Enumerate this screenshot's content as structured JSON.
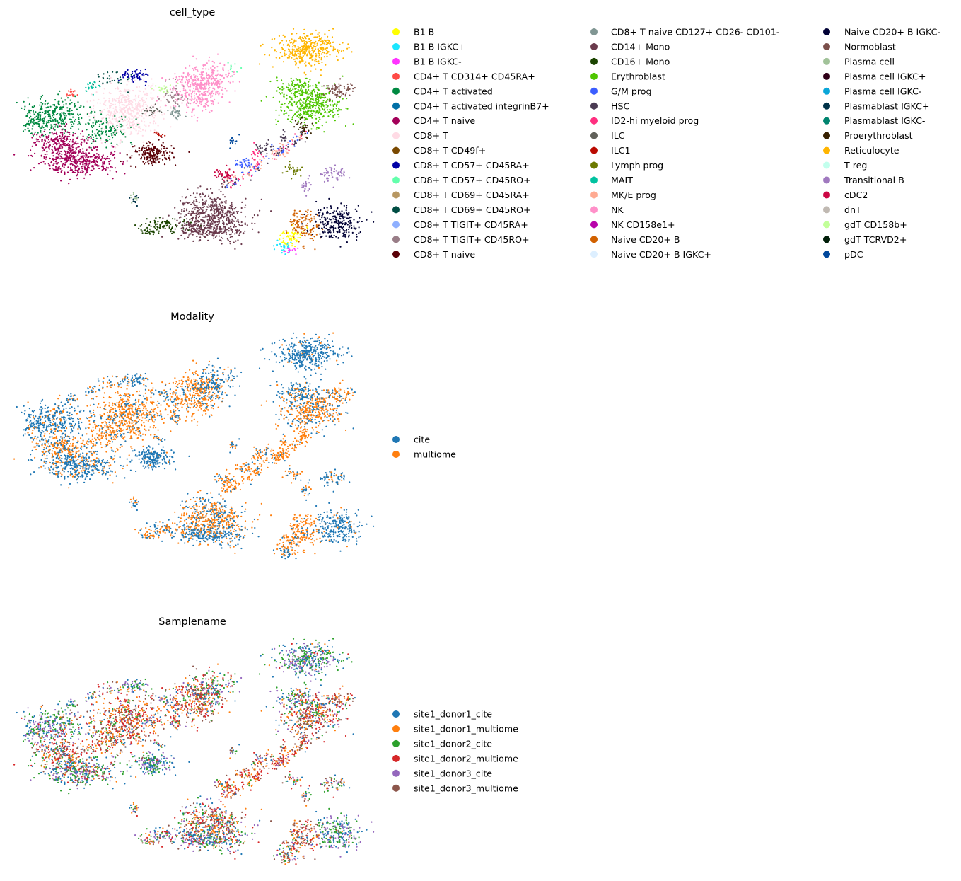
{
  "chart_data": {
    "type": "scatter",
    "xlabel": "",
    "ylabel": "",
    "grid": false,
    "panels": [
      {
        "title": "cell_type",
        "legend_placement": "right",
        "categories": [
          "B1 B",
          "B1 B IGKC+",
          "B1 B IGKC-",
          "CD4+ T CD314+ CD45RA+",
          "CD4+ T activated",
          "CD4+ T activated integrinB7+",
          "CD4+ T naive",
          "CD8+ T",
          "CD8+ T CD49f+",
          "CD8+ T CD57+ CD45RA+",
          "CD8+ T CD57+ CD45RO+",
          "CD8+ T CD69+ CD45RA+",
          "CD8+ T CD69+ CD45RO+",
          "CD8+ T TIGIT+ CD45RA+",
          "CD8+ T TIGIT+ CD45RO+",
          "CD8+ T naive",
          "CD8+ T naive CD127+ CD26- CD101-",
          "CD14+ Mono",
          "CD16+ Mono",
          "Erythroblast",
          "G/M prog",
          "HSC",
          "ID2-hi myeloid prog",
          "ILC",
          "ILC1",
          "Lymph prog",
          "MAIT",
          "MK/E prog",
          "NK",
          "NK CD158e1+",
          "Naive CD20+ B",
          "Naive CD20+ B IGKC+",
          "Naive CD20+ B IGKC-",
          "Normoblast",
          "Plasma cell",
          "Plasma cell IGKC+",
          "Plasma cell IGKC-",
          "Plasmablast IGKC+",
          "Plasmablast IGKC-",
          "Proerythroblast",
          "Reticulocyte",
          "T reg",
          "Transitional B",
          "cDC2",
          "dnT",
          "gdT CD158b+",
          "gdT TCRVD2+",
          "pDC"
        ],
        "colors": [
          "#FFFF00",
          "#1CE6FF",
          "#FF34FF",
          "#FF4A46",
          "#008941",
          "#006FA6",
          "#A30059",
          "#FFDBE5",
          "#7A4900",
          "#0000A6",
          "#63FFAC",
          "#B79762",
          "#004D43",
          "#8FB0FF",
          "#997D87",
          "#5A0007",
          "#809693",
          "#6A3A4C",
          "#1B4400",
          "#4FC601",
          "#3B5DFF",
          "#4A3B53",
          "#FF2F80",
          "#61615A",
          "#BA0900",
          "#6B7900",
          "#00C2A0",
          "#FFAA92",
          "#FF90C9",
          "#B903AA",
          "#D16100",
          "#DDEFFF",
          "#000035",
          "#7B4F4B",
          "#A1C299",
          "#300018",
          "#0AA6D8",
          "#013349",
          "#00846F",
          "#372101",
          "#FFB500",
          "#C2FFED",
          "#A079BF",
          "#CC0744",
          "#C0B9B2",
          "#C2FF99",
          "#001E09",
          "#00489C"
        ]
      },
      {
        "title": "Modality",
        "legend_placement": "right",
        "categories": [
          "cite",
          "multiome"
        ],
        "colors": [
          "#1F77B4",
          "#FF7F0E"
        ]
      },
      {
        "title": "Samplename",
        "legend_placement": "right",
        "categories": [
          "site1_donor1_cite",
          "site1_donor1_multiome",
          "site1_donor2_cite",
          "site1_donor2_multiome",
          "site1_donor3_cite",
          "site1_donor3_multiome"
        ],
        "colors": [
          "#1F77B4",
          "#FF7F0E",
          "#2CA02C",
          "#D62728",
          "#9467BD",
          "#8C564B"
        ]
      }
    ]
  }
}
